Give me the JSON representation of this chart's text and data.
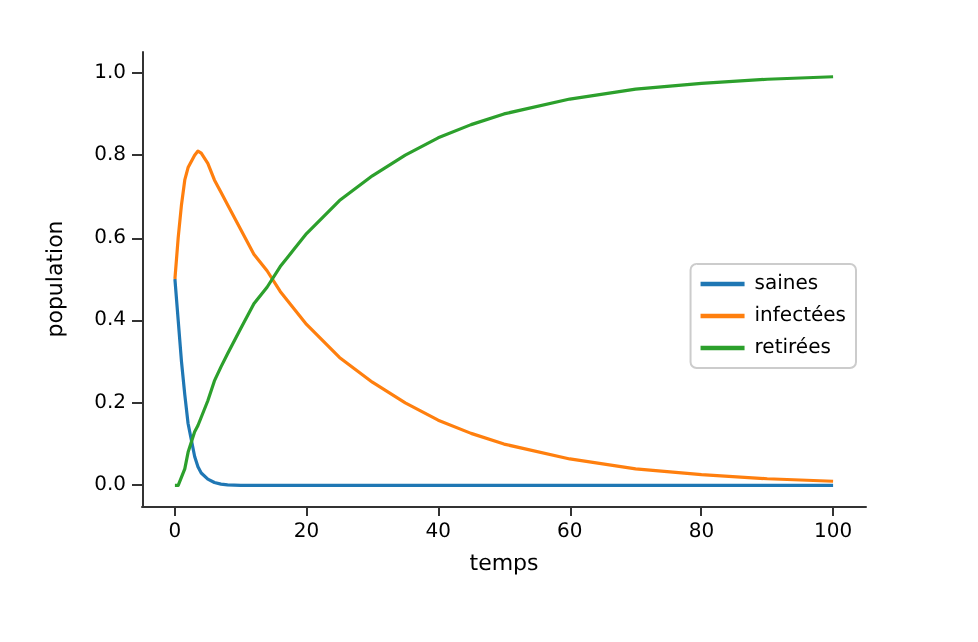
{
  "chart_data": {
    "type": "line",
    "xlabel": "temps",
    "ylabel": "population",
    "x": [
      0,
      0.5,
      1,
      1.5,
      2,
      3,
      3.5,
      4,
      5,
      6,
      7,
      8,
      10,
      12,
      14,
      16,
      18,
      20,
      25,
      30,
      35,
      40,
      45,
      50,
      60,
      70,
      80,
      90,
      100
    ],
    "series": [
      {
        "name": "saines",
        "color": "#1f77b4",
        "values": [
          0.5,
          0.4,
          0.3,
          0.22,
          0.15,
          0.07,
          0.045,
          0.03,
          0.015,
          0.007,
          0.003,
          0.001,
          0,
          0,
          0,
          0,
          0,
          0,
          0,
          0,
          0,
          0,
          0,
          0,
          0,
          0,
          0,
          0,
          0
        ]
      },
      {
        "name": "infectées",
        "color": "#ff7f0e",
        "values": [
          0.5,
          0.6,
          0.68,
          0.74,
          0.77,
          0.8,
          0.81,
          0.805,
          0.78,
          0.74,
          0.71,
          0.68,
          0.62,
          0.56,
          0.52,
          0.47,
          0.43,
          0.39,
          0.31,
          0.25,
          0.2,
          0.158,
          0.126,
          0.1,
          0.064,
          0.04,
          0.026,
          0.016,
          0.01
        ]
      },
      {
        "name": "retirées",
        "color": "#2ca02c",
        "values": [
          0,
          0,
          0.02,
          0.04,
          0.08,
          0.13,
          0.145,
          0.165,
          0.205,
          0.253,
          0.287,
          0.319,
          0.38,
          0.44,
          0.48,
          0.53,
          0.57,
          0.61,
          0.69,
          0.75,
          0.8,
          0.842,
          0.874,
          0.9,
          0.936,
          0.96,
          0.974,
          0.984,
          0.99
        ]
      }
    ],
    "xlim": [
      -5,
      105
    ],
    "xticks": [
      0,
      20,
      40,
      60,
      80,
      100
    ],
    "ylim": [
      -0.05,
      1.05
    ],
    "yticks": [
      {
        "value": 0,
        "label": "0.0"
      },
      0.2,
      0.4,
      0.6,
      0.8,
      {
        "value": 1,
        "label": "1.0"
      }
    ],
    "grid": false,
    "legend": "right",
    "marker": "none",
    "line_style": "solid"
  }
}
